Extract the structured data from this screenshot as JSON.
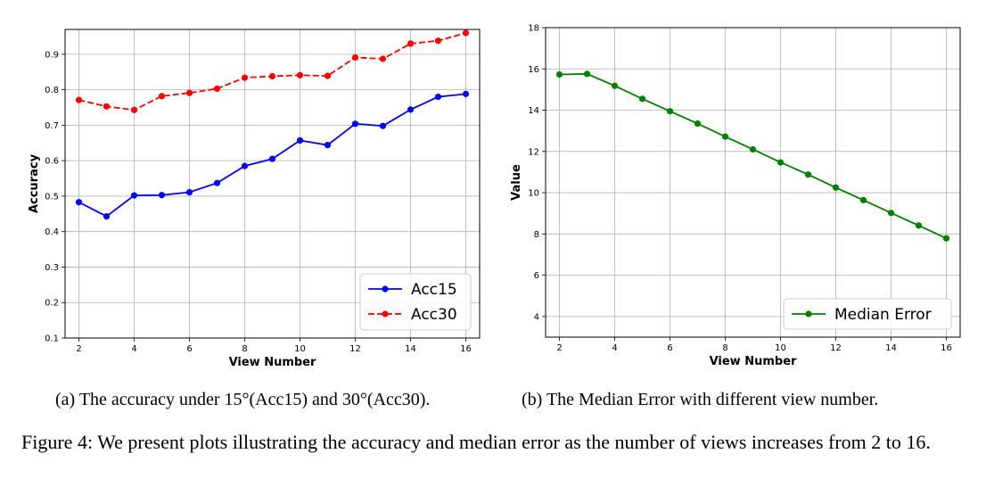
{
  "chart_data": [
    {
      "type": "line",
      "xlabel": "View Number",
      "ylabel": "Accuracy",
      "xlim": [
        1.5,
        16.5
      ],
      "ylim": [
        0.1,
        0.97
      ],
      "xticks": [
        2,
        4,
        6,
        8,
        10,
        12,
        14,
        16
      ],
      "yticks": [
        0.1,
        0.2,
        0.3,
        0.4,
        0.5,
        0.6,
        0.7,
        0.8,
        0.9
      ],
      "xtick_labels": [
        "2",
        "4",
        "6",
        "8",
        "10",
        "12",
        "14",
        "16"
      ],
      "ytick_labels": [
        "0.1",
        "0.2",
        "0.3",
        "0.4",
        "0.5",
        "0.6",
        "0.7",
        "0.8",
        "0.9"
      ],
      "grid": true,
      "legend_position": "bottom-right",
      "x": [
        2,
        3,
        4,
        5,
        6,
        7,
        8,
        9,
        10,
        11,
        12,
        13,
        14,
        15,
        16
      ],
      "series": [
        {
          "name": "Acc15",
          "color": "#0000ff",
          "style": "solid",
          "values": [
            0.483,
            0.443,
            0.502,
            0.503,
            0.511,
            0.537,
            0.585,
            0.605,
            0.657,
            0.644,
            0.704,
            0.698,
            0.744,
            0.78,
            0.788
          ]
        },
        {
          "name": "Acc30",
          "color": "#ff0000",
          "style": "dashed",
          "values": [
            0.771,
            0.753,
            0.743,
            0.782,
            0.791,
            0.803,
            0.834,
            0.838,
            0.841,
            0.839,
            0.891,
            0.887,
            0.93,
            0.938,
            0.96
          ]
        }
      ]
    },
    {
      "type": "line",
      "xlabel": "View Number",
      "ylabel": "Value",
      "xlim": [
        1.5,
        16.5
      ],
      "ylim": [
        3,
        18
      ],
      "xticks": [
        2,
        4,
        6,
        8,
        10,
        12,
        14,
        16
      ],
      "yticks": [
        4,
        6,
        8,
        10,
        12,
        14,
        16,
        18
      ],
      "xtick_labels": [
        "2",
        "4",
        "6",
        "8",
        "10",
        "12",
        "14",
        "16"
      ],
      "ytick_labels": [
        "4",
        "6",
        "8",
        "10",
        "12",
        "14",
        "16",
        "18"
      ],
      "grid": true,
      "legend_position": "bottom-right",
      "x": [
        2,
        3,
        4,
        5,
        6,
        7,
        8,
        9,
        10,
        11,
        12,
        13,
        14,
        15,
        16
      ],
      "series": [
        {
          "name": "Median Error",
          "color": "#008000",
          "style": "solid",
          "values": [
            15.73,
            15.76,
            15.18,
            14.55,
            13.95,
            13.35,
            12.72,
            12.1,
            11.47,
            10.88,
            10.25,
            9.64,
            9.02,
            8.41,
            7.79
          ]
        }
      ]
    }
  ],
  "captions": {
    "sub_a": "(a) The accuracy under 15°(Acc15) and 30°(Acc30).",
    "sub_b": "(b) The Median Error with different view number.",
    "figure": "Figure 4: We present plots illustrating the accuracy and median error as the number of views increases from 2 to 16."
  }
}
